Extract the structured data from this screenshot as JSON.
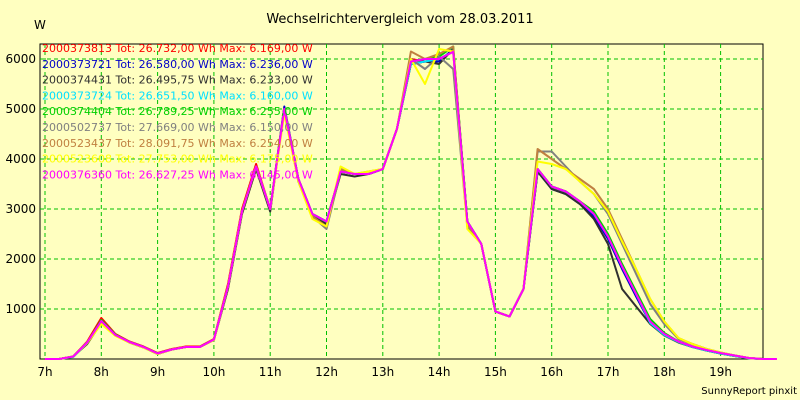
{
  "chart_data": {
    "type": "line",
    "title": "Wechselrichtervergleich vom 28.03.2011",
    "ylabel": "W",
    "xlabel": "",
    "xlim": [
      7,
      20
    ],
    "ylim": [
      0,
      6300
    ],
    "x_ticks": [
      {
        "value": 7,
        "label": "7h"
      },
      {
        "value": 8,
        "label": "8h"
      },
      {
        "value": 9,
        "label": "9h"
      },
      {
        "value": 10,
        "label": "10h"
      },
      {
        "value": 11,
        "label": "11h"
      },
      {
        "value": 12,
        "label": "12h"
      },
      {
        "value": 13,
        "label": "13h"
      },
      {
        "value": 14,
        "label": "14h"
      },
      {
        "value": 15,
        "label": "15h"
      },
      {
        "value": 16,
        "label": "16h"
      },
      {
        "value": 17,
        "label": "17h"
      },
      {
        "value": 18,
        "label": "18h"
      },
      {
        "value": 19,
        "label": "19h"
      }
    ],
    "y_ticks": [
      {
        "value": 1000,
        "label": "1000"
      },
      {
        "value": 2000,
        "label": "2000"
      },
      {
        "value": 3000,
        "label": "3000"
      },
      {
        "value": 4000,
        "label": "4000"
      },
      {
        "value": 5000,
        "label": "5000"
      },
      {
        "value": 6000,
        "label": "6000"
      }
    ],
    "grid": true,
    "footer": "SunnyReport pinxit",
    "x": [
      7.0,
      7.25,
      7.5,
      7.75,
      8.0,
      8.25,
      8.5,
      8.75,
      9.0,
      9.25,
      9.5,
      9.75,
      10.0,
      10.25,
      10.5,
      10.75,
      11.0,
      11.25,
      11.5,
      11.75,
      12.0,
      12.25,
      12.5,
      12.75,
      13.0,
      13.25,
      13.5,
      13.75,
      14.0,
      14.25,
      14.5,
      14.75,
      15.0,
      15.25,
      15.5,
      15.75,
      16.0,
      16.25,
      16.5,
      16.75,
      17.0,
      17.25,
      17.5,
      17.75,
      18.0,
      18.25,
      18.5,
      18.75,
      19.0,
      19.25,
      19.5,
      19.75,
      20.0
    ],
    "series": [
      {
        "name": "2000373813",
        "legend": "2000373813 Tot: 26.732,00 Wh Max: 6.169,00 W",
        "color": "#FF0000",
        "values": [
          0,
          0,
          50,
          350,
          820,
          500,
          350,
          250,
          120,
          200,
          250,
          250,
          400,
          1500,
          3000,
          3900,
          3000,
          5000,
          3600,
          2900,
          2750,
          3750,
          3700,
          3700,
          3800,
          4600,
          6000,
          5950,
          6000,
          6150,
          2750,
          2300,
          950,
          850,
          1400,
          3800,
          3450,
          3350,
          3150,
          2900,
          2450,
          1850,
          1300,
          750,
          500,
          350,
          250,
          180,
          120,
          70,
          20,
          0,
          0
        ]
      },
      {
        "name": "2000373721",
        "legend": "2000373721 Tot: 26.580,00 Wh Max: 6.236,00 W",
        "color": "#0000C8",
        "values": [
          0,
          0,
          50,
          320,
          740,
          480,
          340,
          240,
          110,
          190,
          240,
          240,
          390,
          1450,
          2950,
          3850,
          3000,
          5050,
          3600,
          2900,
          2750,
          3750,
          3700,
          3700,
          3800,
          4600,
          5900,
          5950,
          5950,
          6200,
          2750,
          2300,
          950,
          850,
          1400,
          3750,
          3400,
          3300,
          3100,
          2850,
          2400,
          1800,
          1250,
          720,
          480,
          340,
          240,
          170,
          110,
          60,
          15,
          0,
          0
        ]
      },
      {
        "name": "2000374431",
        "legend": "2000374431 Tot: 26.495,75 Wh Max: 6.233,00 W",
        "color": "#303030",
        "values": [
          0,
          0,
          50,
          300,
          720,
          470,
          330,
          230,
          100,
          190,
          240,
          240,
          380,
          1400,
          2900,
          3800,
          2950,
          5000,
          3550,
          2850,
          2700,
          3700,
          3650,
          3700,
          3800,
          4600,
          5900,
          5950,
          5900,
          6200,
          2750,
          2300,
          950,
          850,
          1400,
          3750,
          3400,
          3300,
          3100,
          2800,
          2300,
          1400,
          1050,
          700,
          470,
          330,
          240,
          170,
          110,
          60,
          15,
          0,
          0
        ]
      },
      {
        "name": "2000373724",
        "legend": "2000373724 Tot: 26.651,50 Wh Max: 6.160,00 W",
        "color": "#00E0FF",
        "values": [
          0,
          0,
          40,
          320,
          760,
          480,
          340,
          240,
          110,
          190,
          240,
          240,
          390,
          1450,
          2950,
          3850,
          3000,
          5000,
          3600,
          2900,
          2750,
          3750,
          3700,
          3700,
          3800,
          4600,
          5900,
          5950,
          6000,
          6150,
          2750,
          2300,
          950,
          850,
          1400,
          3800,
          3450,
          3350,
          3150,
          2900,
          2450,
          1850,
          1300,
          720,
          480,
          340,
          240,
          170,
          110,
          60,
          15,
          0,
          0
        ]
      },
      {
        "name": "2000374404",
        "legend": "2000374404 Tot: 26.789,25 Wh Max: 6.255,00 W",
        "color": "#00D000",
        "values": [
          0,
          0,
          50,
          330,
          780,
          490,
          340,
          240,
          110,
          190,
          240,
          240,
          390,
          1450,
          2950,
          3850,
          3000,
          5000,
          3600,
          2900,
          2750,
          3750,
          3700,
          3700,
          3800,
          4600,
          5950,
          6000,
          6050,
          6250,
          2750,
          2300,
          950,
          850,
          1400,
          3800,
          3450,
          3350,
          3150,
          2950,
          2500,
          1900,
          1350,
          800,
          520,
          350,
          250,
          180,
          120,
          70,
          20,
          0,
          0
        ]
      },
      {
        "name": "2000502737",
        "legend": "2000502737 Tot: 27.669,00 Wh Max: 6.150,00 W",
        "color": "#808080",
        "values": [
          0,
          0,
          50,
          330,
          750,
          470,
          330,
          230,
          100,
          190,
          240,
          240,
          380,
          1450,
          2950,
          3850,
          3000,
          5000,
          3550,
          2850,
          2600,
          3750,
          3700,
          3700,
          3800,
          4600,
          6000,
          5800,
          6050,
          5800,
          2650,
          2300,
          950,
          850,
          1400,
          4150,
          4150,
          3850,
          3550,
          3300,
          2900,
          2300,
          1700,
          1100,
          700,
          400,
          300,
          200,
          130,
          70,
          20,
          0,
          0
        ]
      },
      {
        "name": "2000523437",
        "legend": "2000523437 Tot: 28.091,75 Wh Max: 6.254,00 W",
        "color": "#C08040",
        "values": [
          0,
          0,
          50,
          340,
          760,
          480,
          340,
          240,
          110,
          190,
          240,
          240,
          390,
          1450,
          2950,
          3850,
          3000,
          5000,
          3600,
          2850,
          2650,
          3800,
          3700,
          3750,
          3800,
          4600,
          6150,
          6000,
          6100,
          6250,
          2700,
          2300,
          950,
          850,
          1400,
          4200,
          4000,
          3800,
          3600,
          3400,
          3000,
          2400,
          1800,
          1200,
          750,
          420,
          300,
          200,
          130,
          70,
          20,
          0,
          0
        ]
      },
      {
        "name": "2000523608",
        "legend": "2000523608 Tot: 27.753,00 Wh Max: 6.175,00 W",
        "color": "#FFFF00",
        "values": [
          0,
          0,
          50,
          320,
          700,
          460,
          330,
          230,
          100,
          190,
          240,
          240,
          380,
          1450,
          2950,
          3850,
          3000,
          4900,
          3550,
          2800,
          2650,
          3850,
          3700,
          3750,
          3800,
          4600,
          6000,
          5500,
          6200,
          6150,
          2600,
          2300,
          950,
          850,
          1400,
          3950,
          3900,
          3800,
          3550,
          3300,
          2950,
          2350,
          1800,
          1200,
          750,
          420,
          300,
          200,
          130,
          70,
          20,
          0,
          0
        ]
      },
      {
        "name": "2000376360",
        "legend": "2000376360 Tot: 26.627,25 Wh Max: 6.145,00 W",
        "color": "#FF00FF",
        "values": [
          0,
          0,
          50,
          330,
          760,
          480,
          340,
          240,
          110,
          190,
          240,
          240,
          390,
          1450,
          2950,
          3850,
          3000,
          5000,
          3600,
          2900,
          2750,
          3750,
          3700,
          3700,
          3800,
          4600,
          5950,
          6000,
          6000,
          6145,
          2750,
          2300,
          950,
          850,
          1400,
          3800,
          3450,
          3350,
          3150,
          2900,
          2450,
          1850,
          1300,
          750,
          500,
          350,
          250,
          180,
          120,
          70,
          20,
          0,
          0
        ]
      }
    ]
  }
}
